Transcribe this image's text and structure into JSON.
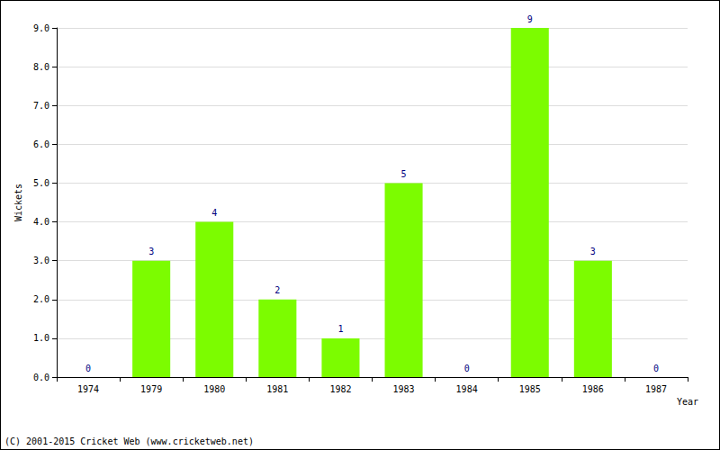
{
  "chart_data": {
    "type": "bar",
    "x_label": "Year",
    "y_label": "Wickets",
    "annotation": "(C) 2001-2015 Cricket Web (www.cricketweb.net)",
    "categories": [
      "1974",
      "1979",
      "1980",
      "1981",
      "1982",
      "1983",
      "1984",
      "1985",
      "1986",
      "1987"
    ],
    "values": [
      0,
      3,
      4,
      2,
      1,
      5,
      0,
      9,
      3,
      0
    ],
    "color": "#7cfc00",
    "ylim": [
      0,
      9
    ],
    "yticks": [
      {
        "value": 0,
        "label": "0.0"
      },
      {
        "value": 1,
        "label": "1.0"
      },
      {
        "value": 2,
        "label": "2.0"
      },
      {
        "value": 3,
        "label": "3.0"
      },
      {
        "value": 4,
        "label": "4.0"
      },
      {
        "value": 5,
        "label": "5.0"
      },
      {
        "value": 6,
        "label": "6.0"
      },
      {
        "value": 7,
        "label": "7.0"
      },
      {
        "value": 8,
        "label": "8.0"
      },
      {
        "value": 9,
        "label": "9.0"
      }
    ],
    "grid": true,
    "data_labels": true
  }
}
